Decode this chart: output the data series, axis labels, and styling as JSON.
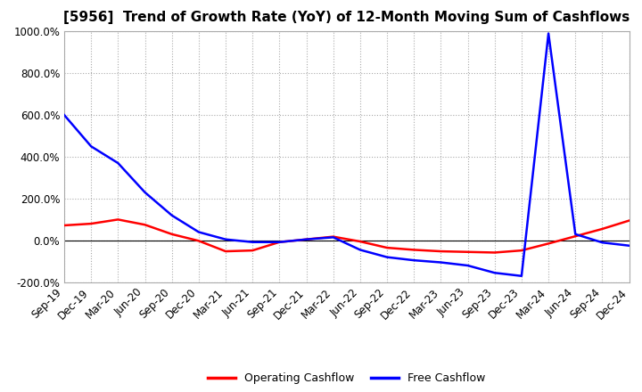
{
  "title": "[5956]  Trend of Growth Rate (YoY) of 12-Month Moving Sum of Cashflows",
  "x_labels": [
    "Sep-19",
    "Dec-19",
    "Mar-20",
    "Jun-20",
    "Sep-20",
    "Dec-20",
    "Mar-21",
    "Jun-21",
    "Sep-21",
    "Dec-21",
    "Mar-22",
    "Jun-22",
    "Sep-22",
    "Dec-22",
    "Mar-23",
    "Jun-23",
    "Sep-23",
    "Dec-23",
    "Mar-24",
    "Jun-24",
    "Sep-24",
    "Dec-24"
  ],
  "operating_cashflow": [
    72,
    80,
    100,
    75,
    30,
    -2,
    -52,
    -48,
    -8,
    5,
    18,
    -5,
    -35,
    -45,
    -52,
    -55,
    -58,
    -48,
    -15,
    20,
    55,
    95
  ],
  "free_cashflow": [
    600,
    450,
    370,
    230,
    120,
    40,
    5,
    -8,
    -8,
    5,
    15,
    -45,
    -80,
    -95,
    -105,
    -120,
    -155,
    -170,
    990,
    30,
    -10,
    -25
  ],
  "ylim": [
    -200,
    1000
  ],
  "yticks": [
    -200,
    0,
    200,
    400,
    600,
    800,
    1000
  ],
  "operating_color": "#ff0000",
  "free_color": "#0000ff",
  "grid_color": "#aaaaaa",
  "background_color": "#ffffff",
  "line_width": 1.8,
  "legend_operating": "Operating Cashflow",
  "legend_free": "Free Cashflow",
  "title_fontsize": 11,
  "tick_fontsize": 8.5
}
